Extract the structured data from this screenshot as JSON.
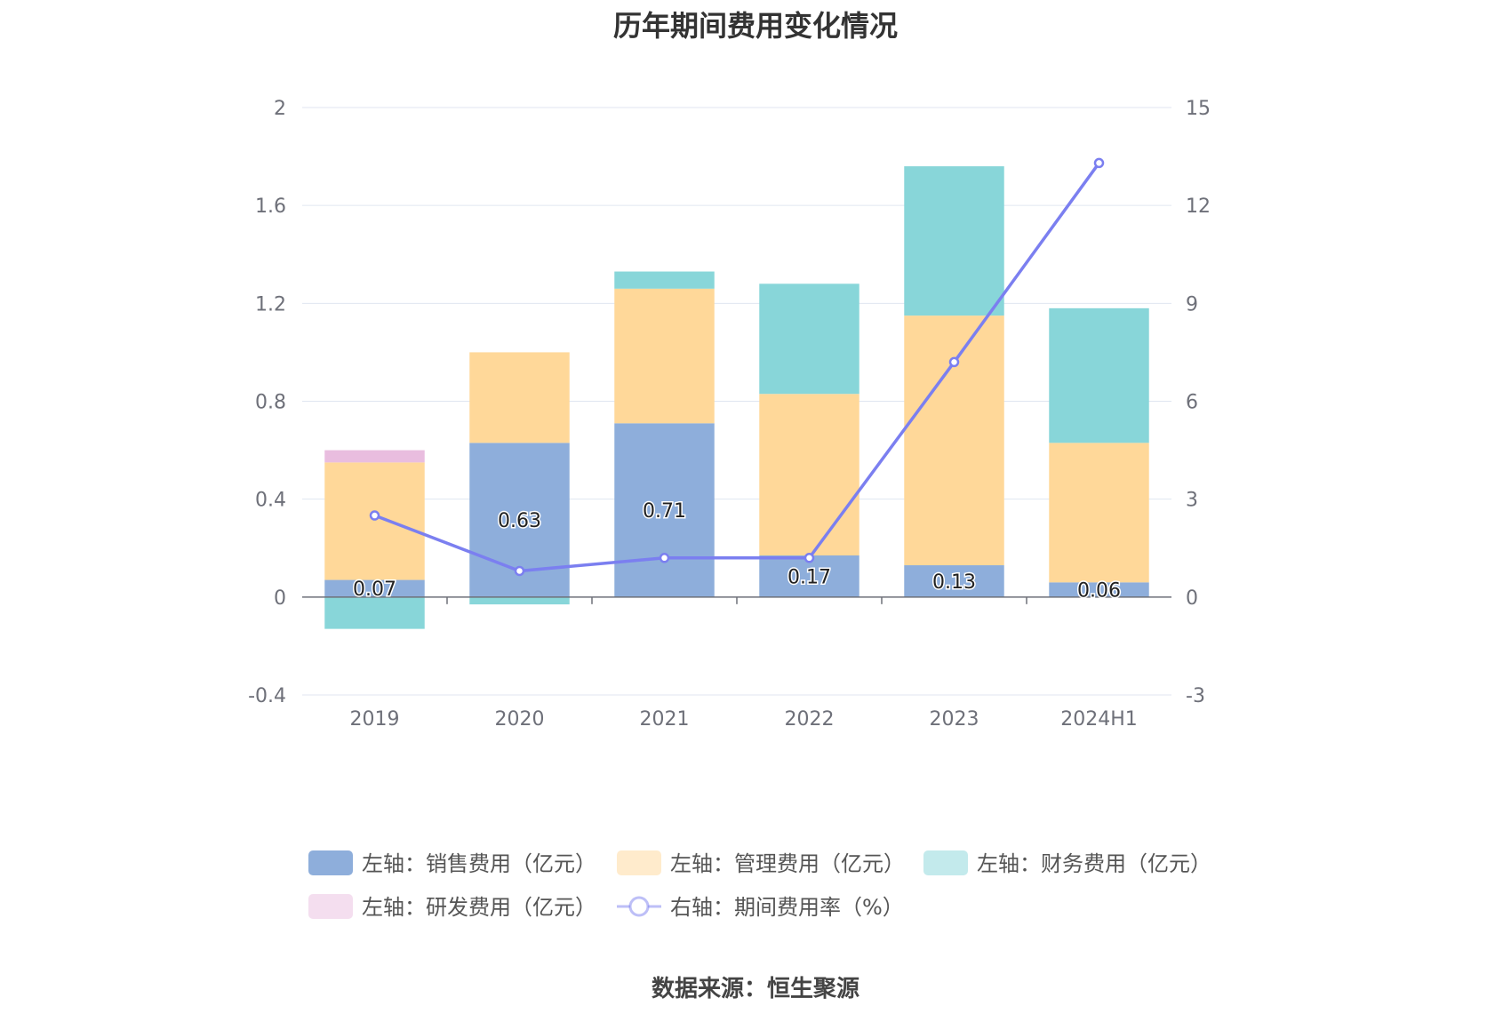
{
  "title": "历年期间费用变化情况",
  "source": "数据来源：恒生聚源",
  "chart_data": {
    "type": "bar",
    "stacked": true,
    "categories": [
      "2019",
      "2020",
      "2021",
      "2022",
      "2023",
      "2024H1"
    ],
    "series": [
      {
        "name": "左轴：销售费用（亿元）",
        "axis": "left",
        "type": "bar",
        "color": "#8eaedb",
        "values": [
          0.07,
          0.63,
          0.71,
          0.17,
          0.13,
          0.06
        ]
      },
      {
        "name": "左轴：管理费用（亿元）",
        "axis": "left",
        "type": "bar",
        "color": "#ffd899",
        "values": [
          0.48,
          0.37,
          0.55,
          0.66,
          1.02,
          0.57
        ]
      },
      {
        "name": "左轴：财务费用（亿元）",
        "axis": "left",
        "type": "bar",
        "color": "#88d6d9",
        "values": [
          -0.13,
          -0.03,
          0.07,
          0.45,
          0.61,
          0.55
        ]
      },
      {
        "name": "左轴：研发费用（亿元）",
        "axis": "left",
        "type": "bar",
        "color": "#e9bddf",
        "values": [
          0.05,
          0,
          0,
          0,
          0,
          0
        ]
      },
      {
        "name": "右轴：期间费用率（%）",
        "axis": "right",
        "type": "line",
        "color": "#7b7ff0",
        "values": [
          2.5,
          0.8,
          1.2,
          1.2,
          7.2,
          13.3
        ]
      }
    ],
    "data_labels": [
      "0.07",
      "0.63",
      "0.71",
      "0.17",
      "0.13",
      "0.06"
    ],
    "y_left": {
      "min": -0.4,
      "max": 2,
      "ticks": [
        "2",
        "1.6",
        "1.2",
        "0.8",
        "0.4",
        "0",
        "-0.4"
      ]
    },
    "y_right": {
      "min": -3,
      "max": 15,
      "ticks": [
        "15",
        "12",
        "9",
        "6",
        "3",
        "0",
        "-3"
      ]
    },
    "grid": true,
    "legend_position": "bottom"
  }
}
